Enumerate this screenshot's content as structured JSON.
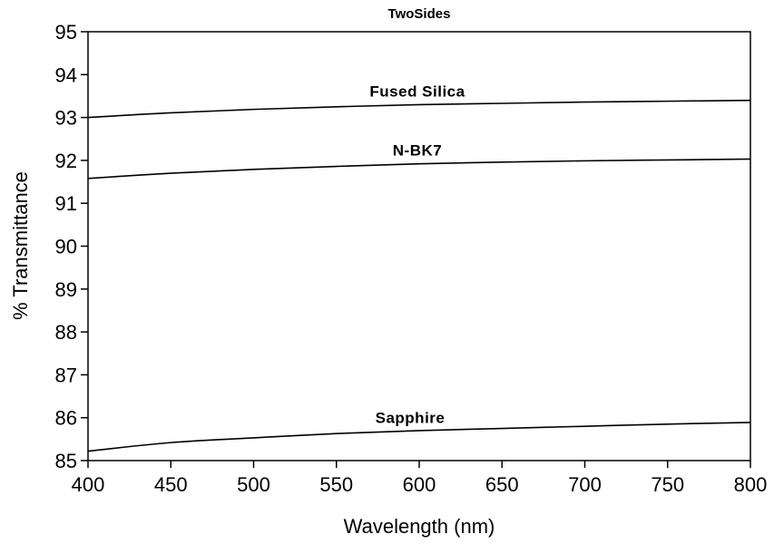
{
  "chart_data": {
    "type": "line",
    "title": "TwoSides",
    "xlabel": "Wavelength (nm)",
    "ylabel": "% Transmittance",
    "xlim": [
      400,
      800
    ],
    "ylim": [
      85,
      95
    ],
    "x_ticks": [
      400,
      450,
      500,
      550,
      600,
      650,
      700,
      750,
      800
    ],
    "y_ticks": [
      85,
      86,
      87,
      88,
      89,
      90,
      91,
      92,
      93,
      94,
      95
    ],
    "grid": false,
    "legend": "none",
    "line_color": "#000000",
    "series": [
      {
        "name": "Fused Silica",
        "x": [
          400,
          450,
          500,
          550,
          600,
          650,
          700,
          750,
          800
        ],
        "y": [
          93.0,
          93.11,
          93.19,
          93.25,
          93.3,
          93.33,
          93.36,
          93.38,
          93.4
        ]
      },
      {
        "name": "N-BK7",
        "x": [
          400,
          450,
          500,
          550,
          600,
          650,
          700,
          750,
          800
        ],
        "y": [
          91.58,
          91.7,
          91.79,
          91.86,
          91.92,
          91.96,
          91.99,
          92.01,
          92.03
        ]
      },
      {
        "name": "Sapphire",
        "x": [
          400,
          450,
          500,
          550,
          600,
          650,
          700,
          750,
          800
        ],
        "y": [
          85.22,
          85.42,
          85.53,
          85.63,
          85.7,
          85.75,
          85.8,
          85.85,
          85.89
        ]
      }
    ]
  }
}
